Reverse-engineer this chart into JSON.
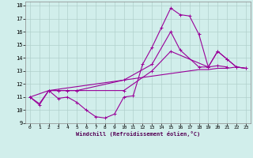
{
  "xlabel": "Windchill (Refroidissement éolien,°C)",
  "background_color": "#d1eeeb",
  "grid_color": "#b0d0cc",
  "line_color": "#990099",
  "xlim_min": -0.5,
  "xlim_max": 23.5,
  "ylim_min": 9,
  "ylim_max": 18.3,
  "xticks": [
    0,
    1,
    2,
    3,
    4,
    5,
    6,
    7,
    8,
    9,
    10,
    11,
    12,
    13,
    14,
    15,
    16,
    17,
    18,
    19,
    20,
    21,
    22,
    23
  ],
  "yticks": [
    9,
    10,
    11,
    12,
    13,
    14,
    15,
    16,
    17,
    18
  ],
  "curve1_x": [
    0,
    1,
    2,
    3,
    4,
    5,
    6,
    7,
    8,
    9,
    10,
    11,
    12,
    13,
    14,
    15,
    16,
    17,
    18,
    19,
    20,
    21
  ],
  "curve1_y": [
    11.0,
    10.4,
    11.5,
    10.9,
    11.0,
    10.6,
    10.0,
    9.5,
    9.4,
    9.7,
    11.0,
    11.1,
    13.5,
    14.8,
    16.3,
    17.8,
    17.3,
    17.2,
    15.8,
    13.3,
    13.4,
    13.3
  ],
  "curve2_x": [
    0,
    1,
    2,
    3,
    4,
    5,
    6,
    7,
    8,
    9,
    10,
    11,
    12,
    13,
    14,
    15,
    16,
    17,
    18,
    19,
    20,
    21,
    22,
    23
  ],
  "curve2_y": [
    11.0,
    10.5,
    11.5,
    11.6,
    11.7,
    11.8,
    11.9,
    12.0,
    12.1,
    12.2,
    12.3,
    12.4,
    12.5,
    12.6,
    12.7,
    12.8,
    12.9,
    13.0,
    13.1,
    13.1,
    13.2,
    13.2,
    13.3,
    13.2
  ],
  "curve3_x": [
    0,
    2,
    3,
    4,
    5,
    10,
    13,
    15,
    19,
    20,
    21,
    22,
    23
  ],
  "curve3_y": [
    11.0,
    11.5,
    11.5,
    11.5,
    11.5,
    11.5,
    13.0,
    14.5,
    13.3,
    14.5,
    13.9,
    13.3,
    13.2
  ],
  "curve4_x": [
    2,
    3,
    4,
    5,
    10,
    13,
    15,
    16,
    18,
    19,
    20,
    21,
    22,
    23
  ],
  "curve4_y": [
    11.5,
    11.5,
    11.5,
    11.5,
    12.3,
    13.5,
    16.0,
    14.6,
    13.3,
    13.3,
    14.5,
    13.9,
    13.3,
    13.2
  ]
}
